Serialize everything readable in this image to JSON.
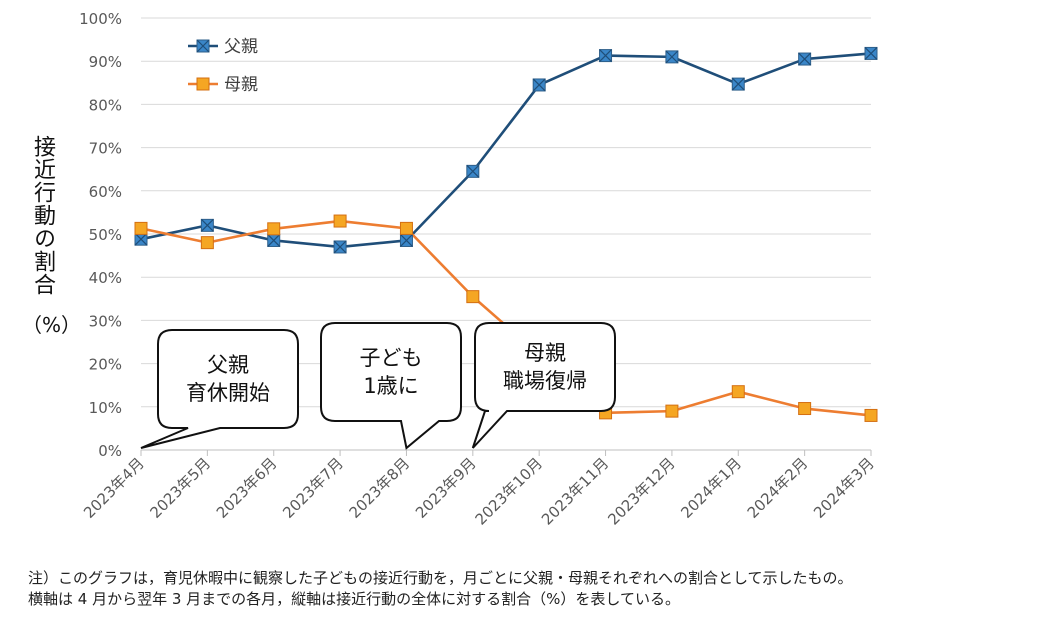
{
  "chart_data": {
    "type": "line",
    "categories": [
      "2023年4月",
      "2023年5月",
      "2023年6月",
      "2023年7月",
      "2023年8月",
      "2023年9月",
      "2023年10月",
      "2023年11月",
      "2023年12月",
      "2024年1月",
      "2024年2月",
      "2024年3月"
    ],
    "series": [
      {
        "name": "父親",
        "color": "#1f4e79",
        "marker_color": "#3a86c8",
        "marker": "square-x",
        "values": [
          48.8,
          52.0,
          48.5,
          47.0,
          48.5,
          64.5,
          84.5,
          91.3,
          91.0,
          84.7,
          90.5,
          91.8
        ]
      },
      {
        "name": "母親",
        "color": "#ed7d31",
        "marker_color": "#f5a623",
        "marker": "square",
        "values": [
          51.3,
          48.0,
          51.2,
          53.0,
          51.3,
          35.5,
          null,
          8.6,
          9.0,
          13.5,
          9.6,
          8.0
        ]
      }
    ],
    "y_ticks": [
      "0%",
      "10%",
      "20%",
      "30%",
      "40%",
      "50%",
      "60%",
      "70%",
      "80%",
      "90%",
      "100%"
    ],
    "ylim": [
      0,
      100
    ],
    "ylabel": "接近行動の割合",
    "ylabel_unit": "（%）",
    "grid": true,
    "legend_position": "top-left",
    "annotations": [
      {
        "text_lines": [
          "父親",
          "育休開始"
        ],
        "pointer_category": "2023年4月"
      },
      {
        "text_lines": [
          "子ども",
          "1歳に"
        ],
        "pointer_category": "2023年8月"
      },
      {
        "text_lines": [
          "母親",
          "職場復帰"
        ],
        "pointer_category": "2023年9月"
      }
    ]
  },
  "note": {
    "line1": "注）このグラフは，育児休暇中に観察した子どもの接近行動を，月ごとに父親・母親それぞれへの割合として示したもの。",
    "line2": "横軸は 4 月から翌年 3 月までの各月，縦軸は接近行動の全体に対する割合（%）を表している。"
  }
}
